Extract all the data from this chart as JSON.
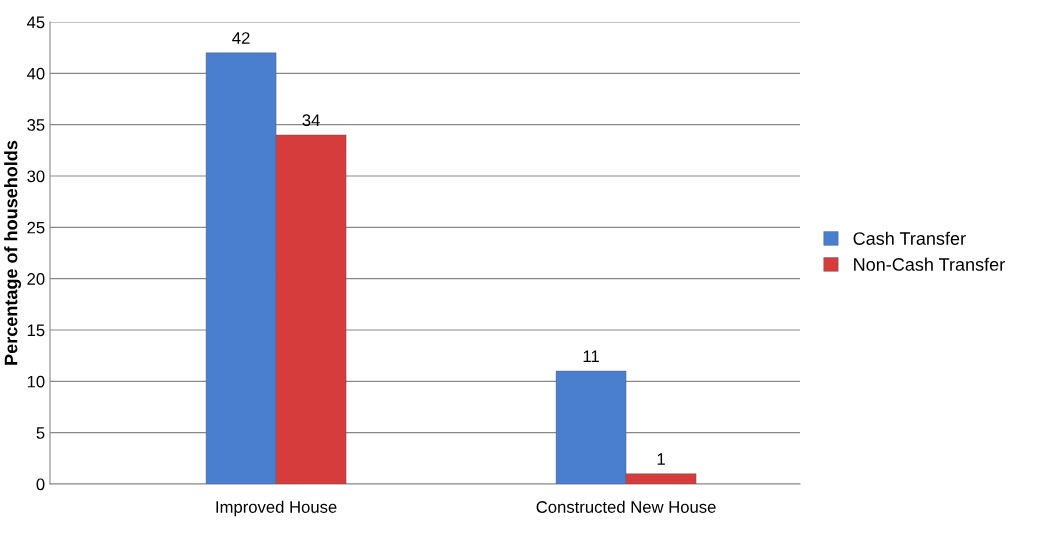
{
  "chart_data": {
    "type": "bar",
    "ylabel": "Percentage of households",
    "categories": [
      "Improved House",
      "Constructed New House"
    ],
    "series": [
      {
        "name": "Cash Transfer",
        "color": "#4a7fd0",
        "values": [
          42,
          11
        ]
      },
      {
        "name": "Non-Cash Transfer",
        "color": "#d63c3c",
        "values": [
          34,
          1
        ]
      }
    ],
    "ylim": [
      0,
      45
    ],
    "yticks": [
      0,
      5,
      10,
      15,
      20,
      25,
      30,
      35,
      40,
      45
    ],
    "grid": "y",
    "legend": "right",
    "data_labels": true
  }
}
